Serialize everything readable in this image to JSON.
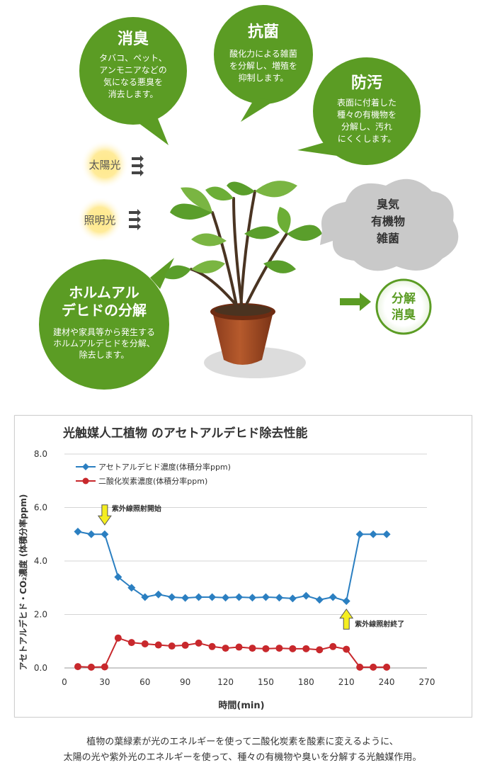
{
  "bubbles": {
    "deodorize": {
      "title": "消臭",
      "lines": [
        "タバコ、ペット、",
        "アンモニアなどの",
        "気になる悪臭を",
        "消去します。"
      ]
    },
    "antibacterial": {
      "title": "抗菌",
      "lines": [
        "酸化力による雑菌",
        "を分解し、増殖を",
        "抑制します。"
      ]
    },
    "antifouling": {
      "title": "防汚",
      "lines": [
        "表面に付着した",
        "種々の有機物を",
        "分解し、汚れ",
        "にくくします。"
      ]
    },
    "formaldehyde": {
      "title_lines": [
        "ホルムアル",
        "デヒドの分解"
      ],
      "lines": [
        "建材や家具等から発生する",
        "ホルムアルデヒドを分解、",
        "除去します。"
      ]
    }
  },
  "light_sources": [
    "太陽光",
    "照明光"
  ],
  "pollutants": [
    "臭気",
    "有機物",
    "雑菌"
  ],
  "result": [
    "分解",
    "消臭"
  ],
  "chart_data": {
    "type": "line",
    "title": "光触媒人工植物 のアセトアルデヒド除去性能",
    "xlabel": "時間(min)",
    "ylabel": "アセトアルデヒド・CO₂濃度 (体積分率ppm)",
    "xlim": [
      0,
      270
    ],
    "ylim": [
      0,
      8
    ],
    "xticks": [
      "0",
      "30",
      "60",
      "90",
      "120",
      "150",
      "180",
      "210",
      "240",
      "270"
    ],
    "yticks": [
      "0.0",
      "2.0",
      "4.0",
      "6.0",
      "8.0"
    ],
    "grid": true,
    "legend_position": "top-left",
    "x": [
      10,
      20,
      30,
      40,
      50,
      60,
      70,
      80,
      90,
      100,
      110,
      120,
      130,
      140,
      150,
      160,
      170,
      180,
      190,
      200,
      210,
      220,
      230,
      240
    ],
    "series": [
      {
        "name": "アセトアルデヒド濃度(体積分率ppm)",
        "color": "#2b7fc1",
        "marker": "diamond",
        "values": [
          5.1,
          5.0,
          5.0,
          3.4,
          3.0,
          2.65,
          2.75,
          2.65,
          2.62,
          2.65,
          2.65,
          2.63,
          2.65,
          2.63,
          2.65,
          2.63,
          2.6,
          2.7,
          2.55,
          2.65,
          2.5,
          5.0,
          5.0,
          5.0
        ]
      },
      {
        "name": "二酸化炭素濃度(体積分率ppm)",
        "color": "#c8282c",
        "marker": "circle",
        "values": [
          0.05,
          0.03,
          0.04,
          1.12,
          0.95,
          0.9,
          0.86,
          0.82,
          0.85,
          0.93,
          0.8,
          0.74,
          0.78,
          0.74,
          0.72,
          0.74,
          0.72,
          0.72,
          0.68,
          0.8,
          0.7,
          0.03,
          0.03,
          0.03
        ]
      }
    ],
    "annotations": [
      {
        "text": "紫外線照射開始",
        "x": 30,
        "arrow": "down"
      },
      {
        "text": "紫外線照射終了",
        "x": 210,
        "arrow": "up"
      }
    ]
  },
  "caption_lines": [
    "植物の葉緑素が光のエネルギーを使って二酸化炭素を酸素に変えるように、",
    "太陽の光や紫外光のエネルギーを使って、種々の有機物や臭いを分解する光触媒作用。"
  ]
}
